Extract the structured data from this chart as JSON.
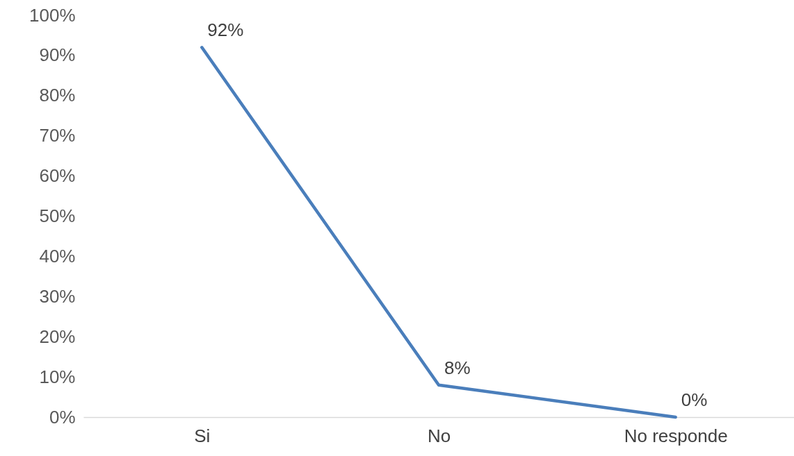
{
  "chart_data": {
    "type": "line",
    "categories": [
      "Si",
      "No",
      "No responde"
    ],
    "series": [
      {
        "color": "#4a7ebb",
        "values": [
          92,
          8,
          0
        ],
        "value_labels": [
          "92%",
          "8%",
          "0%"
        ]
      }
    ],
    "ylim": [
      0,
      100
    ],
    "yticks": [
      {
        "value": 0,
        "label": "0%"
      },
      {
        "value": 10,
        "label": "10%"
      },
      {
        "value": 20,
        "label": "20%"
      },
      {
        "value": 30,
        "label": "30%"
      },
      {
        "value": 40,
        "label": "40%"
      },
      {
        "value": 50,
        "label": "50%"
      },
      {
        "value": 60,
        "label": "60%"
      },
      {
        "value": 70,
        "label": "70%"
      },
      {
        "value": 80,
        "label": "80%"
      },
      {
        "value": 90,
        "label": "90%"
      },
      {
        "value": 100,
        "label": "100%"
      }
    ],
    "grid": false,
    "legend": false,
    "marker": "none",
    "line_style": "solid"
  }
}
